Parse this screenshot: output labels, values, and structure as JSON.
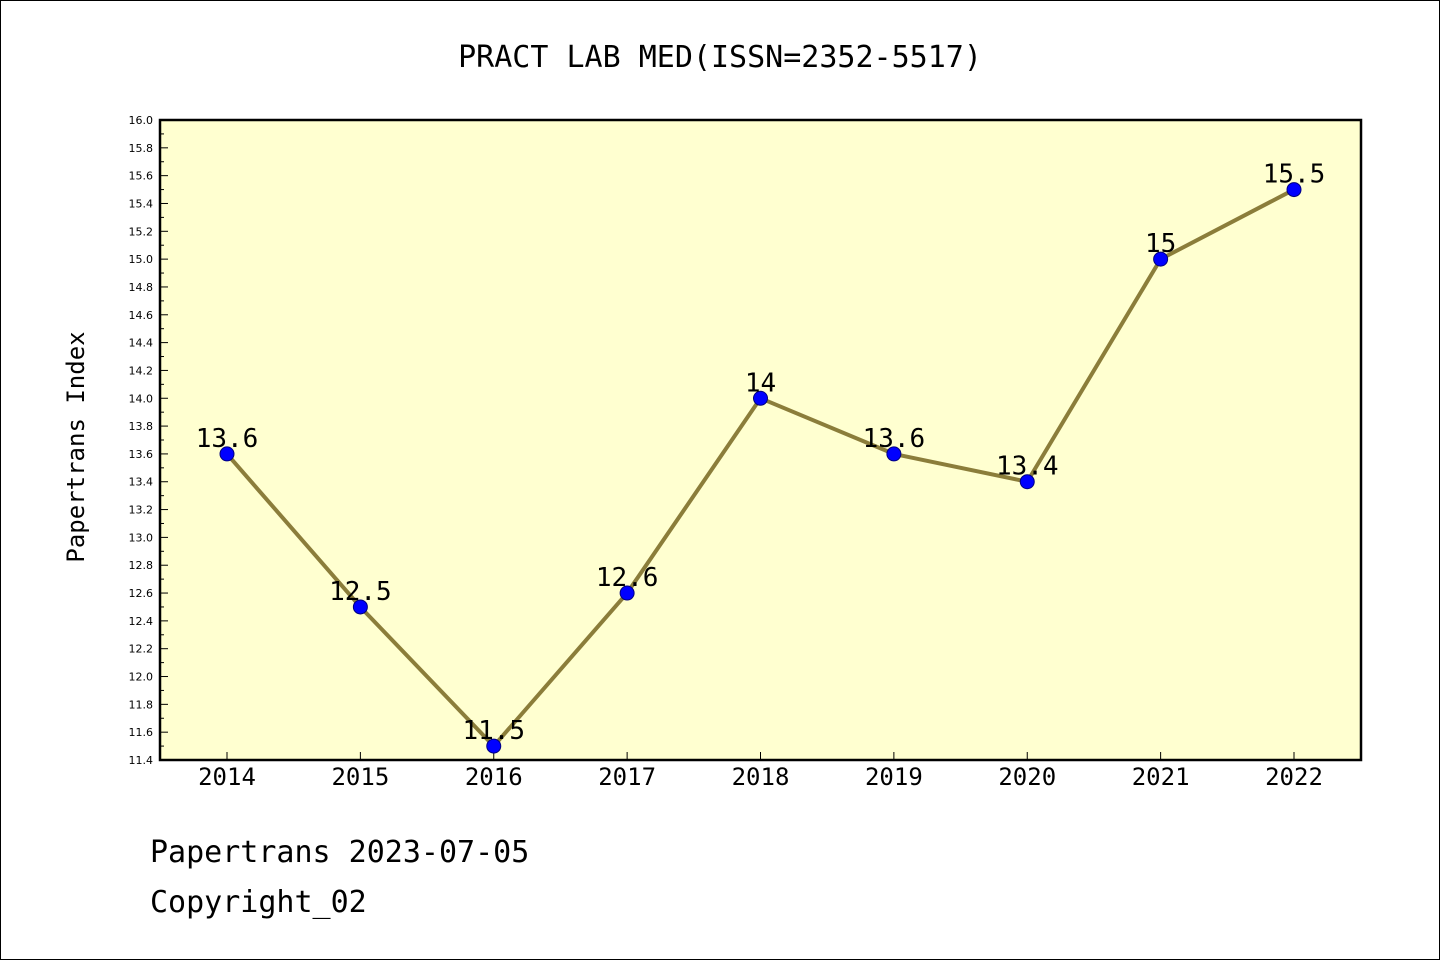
{
  "chart_data": {
    "type": "line",
    "title": "PRACT LAB MED(ISSN=2352-5517)",
    "xlabel": "",
    "ylabel": "Papertrans Index",
    "categories": [
      "2014",
      "2015",
      "2016",
      "2017",
      "2018",
      "2019",
      "2020",
      "2021",
      "2022"
    ],
    "series": [
      {
        "values": [
          13.6,
          12.5,
          11.5,
          12.6,
          14.0,
          13.6,
          13.4,
          15.0,
          15.5
        ],
        "data_labels": [
          "13.6",
          "12.5",
          "11.5",
          "12.6",
          "14",
          "13.6",
          "13.4",
          "15",
          "15.5"
        ]
      }
    ],
    "ylim": [
      11.4,
      16.0
    ],
    "ytick_step": 0.2,
    "grid": false,
    "legend": "none",
    "colors": {
      "plot_background": "#FFFFD0",
      "line": "#8B7D3A",
      "marker_fill": "#0000FF",
      "marker_edge": "#000080",
      "axes": "#000000"
    }
  },
  "footer": {
    "date_line": "Papertrans 2023-07-05",
    "copyright_line": "Copyright_02"
  }
}
